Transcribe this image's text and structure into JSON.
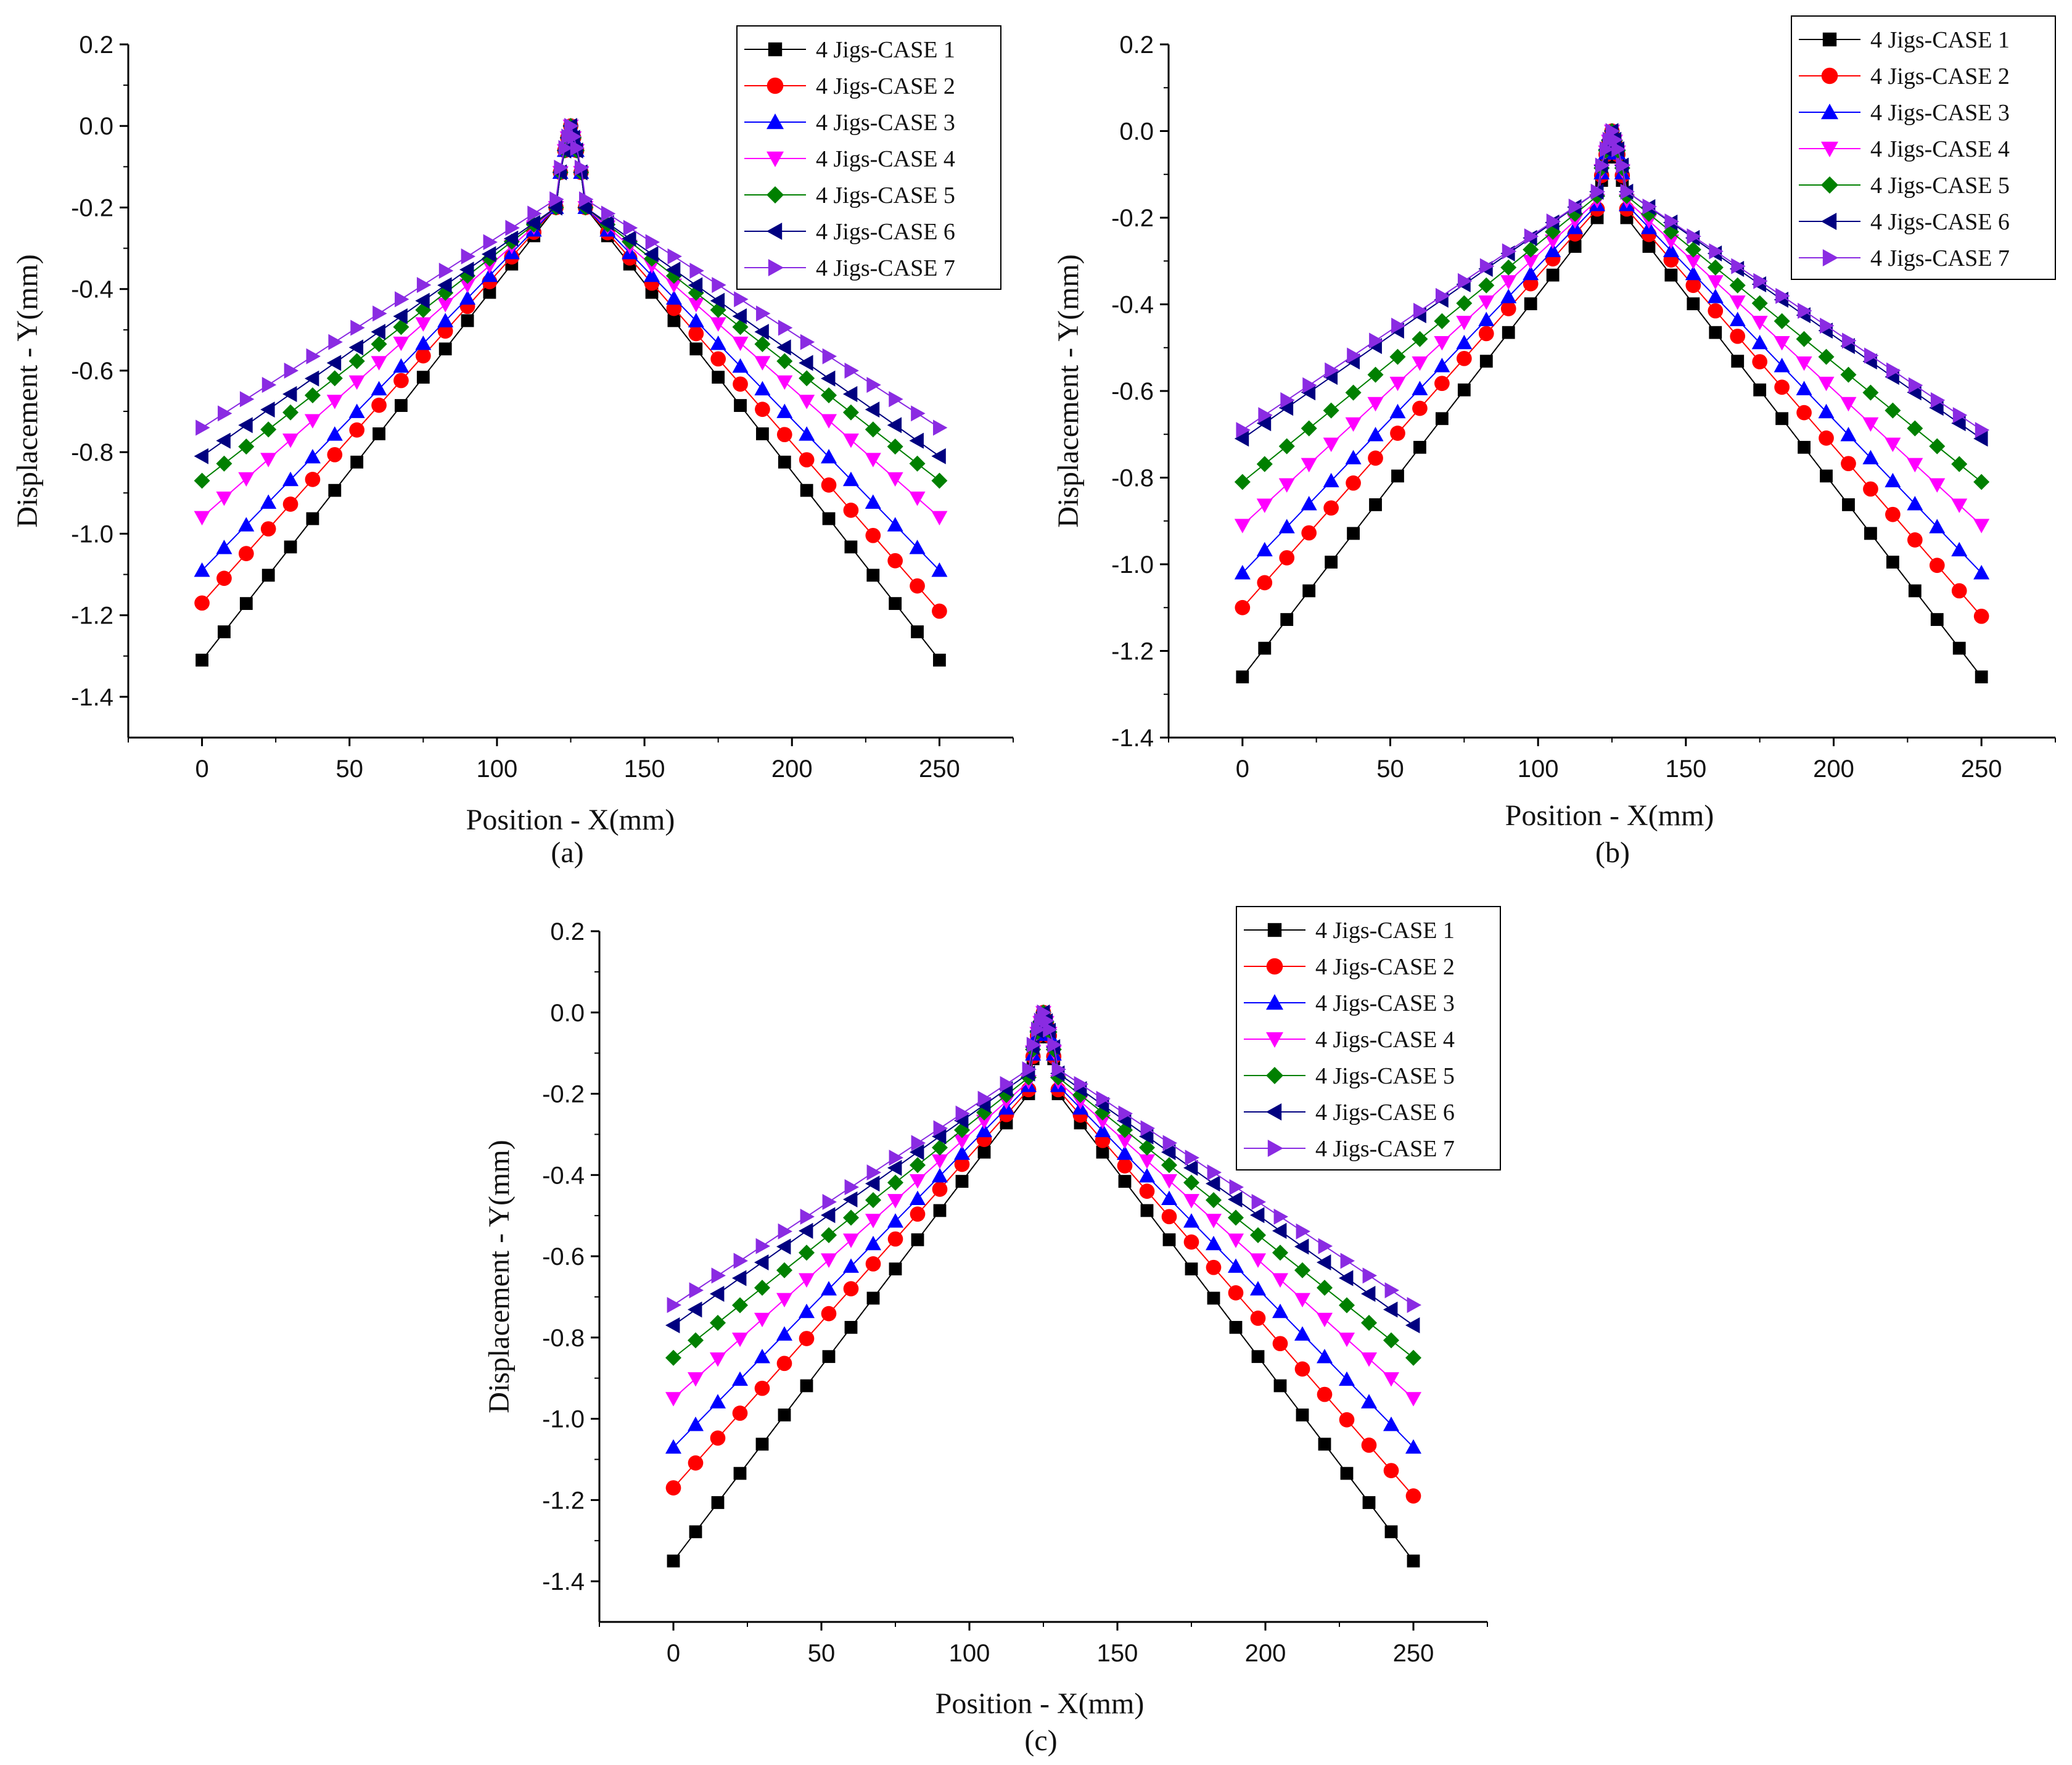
{
  "figure": {
    "panels": [
      {
        "id": "a",
        "caption": "(a)"
      },
      {
        "id": "b",
        "caption": "(b)"
      },
      {
        "id": "c",
        "caption": "(c)"
      }
    ]
  },
  "chart_data": [
    {
      "id": "a",
      "type": "line",
      "caption": "(a)",
      "xlabel": "Position - X(mm)",
      "ylabel": "Displacement - Y(mm)",
      "xlim": [
        -25,
        275
      ],
      "ylim": [
        -1.5,
        0.2
      ],
      "xticks": [
        0,
        50,
        100,
        150,
        200,
        250
      ],
      "xtick_labels": [
        "0",
        "50",
        "100",
        "150",
        "200",
        "250"
      ],
      "yticks": [
        0.2,
        0.0,
        -0.2,
        -0.4,
        -0.6,
        -0.8,
        -1.0,
        -1.2,
        -1.4
      ],
      "ytick_labels": [
        "0.2",
        "0.0",
        "-0.2",
        "-0.4",
        "-0.6",
        "-0.8",
        "-1.0",
        "-1.2",
        "-1.4"
      ],
      "legend_position": "top-right",
      "x_pattern": "symmetric 0–250 mm; linear from ends to ~120/130 mm, peak at 125 mm",
      "series": [
        {
          "name": "4 Jigs-CASE 1",
          "color": "#000000",
          "marker": "square",
          "end": -1.31,
          "knee": -0.2,
          "peak": 0.0
        },
        {
          "name": "4 Jigs-CASE 2",
          "color": "#ff0000",
          "marker": "circle",
          "end": -1.17,
          "end_right": -1.19,
          "knee": -0.2,
          "peak": 0.0
        },
        {
          "name": "4 Jigs-CASE 3",
          "color": "#0000ff",
          "marker": "triangle-up",
          "end": -1.09,
          "knee": -0.2,
          "peak": 0.0
        },
        {
          "name": "4 Jigs-CASE 4",
          "color": "#ff00ff",
          "marker": "triangle-down",
          "end": -0.96,
          "knee": -0.2,
          "peak": 0.0
        },
        {
          "name": "4 Jigs-CASE 5",
          "color": "#008000",
          "marker": "diamond",
          "end": -0.87,
          "knee": -0.2,
          "peak": 0.0
        },
        {
          "name": "4 Jigs-CASE 6",
          "color": "#000080",
          "marker": "triangle-left",
          "end": -0.81,
          "knee": -0.2,
          "peak": 0.0
        },
        {
          "name": "4 Jigs-CASE 7",
          "color": "#8a2be2",
          "marker": "triangle-right",
          "end": -0.74,
          "knee": -0.18,
          "peak": 0.0
        }
      ]
    },
    {
      "id": "b",
      "type": "line",
      "caption": "(b)",
      "xlabel": "Position - X(mm)",
      "ylabel": "Displacement - Y(mm)",
      "xlim": [
        -25,
        275
      ],
      "ylim": [
        -1.4,
        0.2
      ],
      "xticks": [
        0,
        50,
        100,
        150,
        200,
        250
      ],
      "xtick_labels": [
        "0",
        "50",
        "100",
        "150",
        "200",
        "250"
      ],
      "yticks": [
        0.2,
        0.0,
        -0.2,
        -0.4,
        -0.6,
        -0.8,
        -1.0,
        -1.2,
        -1.4
      ],
      "ytick_labels": [
        "0.2",
        "0.0",
        "-0.2",
        "-0.4",
        "-0.6",
        "-0.8",
        "-1.0",
        "-1.2",
        "-1.4"
      ],
      "legend_position": "top-right",
      "series": [
        {
          "name": "4 Jigs-CASE 1",
          "color": "#000000",
          "marker": "square",
          "end": -1.26,
          "knee": -0.2,
          "peak": 0.0
        },
        {
          "name": "4 Jigs-CASE 2",
          "color": "#ff0000",
          "marker": "circle",
          "end": -1.1,
          "end_right": -1.12,
          "knee": -0.18,
          "peak": 0.0
        },
        {
          "name": "4 Jigs-CASE 3",
          "color": "#0000ff",
          "marker": "triangle-up",
          "end": -1.02,
          "knee": -0.17,
          "peak": 0.0
        },
        {
          "name": "4 Jigs-CASE 4",
          "color": "#ff00ff",
          "marker": "triangle-down",
          "end": -0.91,
          "knee": -0.16,
          "peak": 0.0
        },
        {
          "name": "4 Jigs-CASE 5",
          "color": "#008000",
          "marker": "diamond",
          "end": -0.81,
          "knee": -0.15,
          "peak": 0.0
        },
        {
          "name": "4 Jigs-CASE 6",
          "color": "#000080",
          "marker": "triangle-left",
          "end": -0.71,
          "knee": -0.14,
          "peak": 0.0
        },
        {
          "name": "4 Jigs-CASE 7",
          "color": "#8a2be2",
          "marker": "triangle-right",
          "end": -0.69,
          "knee": -0.14,
          "peak": 0.0
        }
      ]
    },
    {
      "id": "c",
      "type": "line",
      "caption": "(c)",
      "xlabel": "Position - X(mm)",
      "ylabel": "Displacement - Y(mm)",
      "xlim": [
        -25,
        275
      ],
      "ylim": [
        -1.5,
        0.2
      ],
      "xticks": [
        0,
        50,
        100,
        150,
        200,
        250
      ],
      "xtick_labels": [
        "0",
        "50",
        "100",
        "150",
        "200",
        "250"
      ],
      "yticks": [
        0.2,
        0.0,
        -0.2,
        -0.4,
        -0.6,
        -0.8,
        -1.0,
        -1.2,
        -1.4
      ],
      "ytick_labels": [
        "0.2",
        "0.0",
        "-0.2",
        "-0.4",
        "-0.6",
        "-0.8",
        "-1.0",
        "-1.2",
        "-1.4"
      ],
      "legend_position": "top-right",
      "series": [
        {
          "name": "4 Jigs-CASE 1",
          "color": "#000000",
          "marker": "square",
          "end": -1.35,
          "knee": -0.2,
          "peak": 0.0
        },
        {
          "name": "4 Jigs-CASE 2",
          "color": "#ff0000",
          "marker": "circle",
          "end": -1.17,
          "end_right": -1.19,
          "knee": -0.19,
          "peak": 0.0
        },
        {
          "name": "4 Jigs-CASE 3",
          "color": "#0000ff",
          "marker": "triangle-up",
          "end": -1.07,
          "knee": -0.18,
          "peak": 0.0
        },
        {
          "name": "4 Jigs-CASE 4",
          "color": "#ff00ff",
          "marker": "triangle-down",
          "end": -0.95,
          "knee": -0.17,
          "peak": 0.0
        },
        {
          "name": "4 Jigs-CASE 5",
          "color": "#008000",
          "marker": "diamond",
          "end": -0.85,
          "knee": -0.16,
          "peak": 0.0
        },
        {
          "name": "4 Jigs-CASE 6",
          "color": "#000080",
          "marker": "triangle-left",
          "end": -0.77,
          "knee": -0.15,
          "peak": 0.0
        },
        {
          "name": "4 Jigs-CASE 7",
          "color": "#8a2be2",
          "marker": "triangle-right",
          "end": -0.72,
          "knee": -0.14,
          "peak": 0.0
        }
      ]
    }
  ]
}
